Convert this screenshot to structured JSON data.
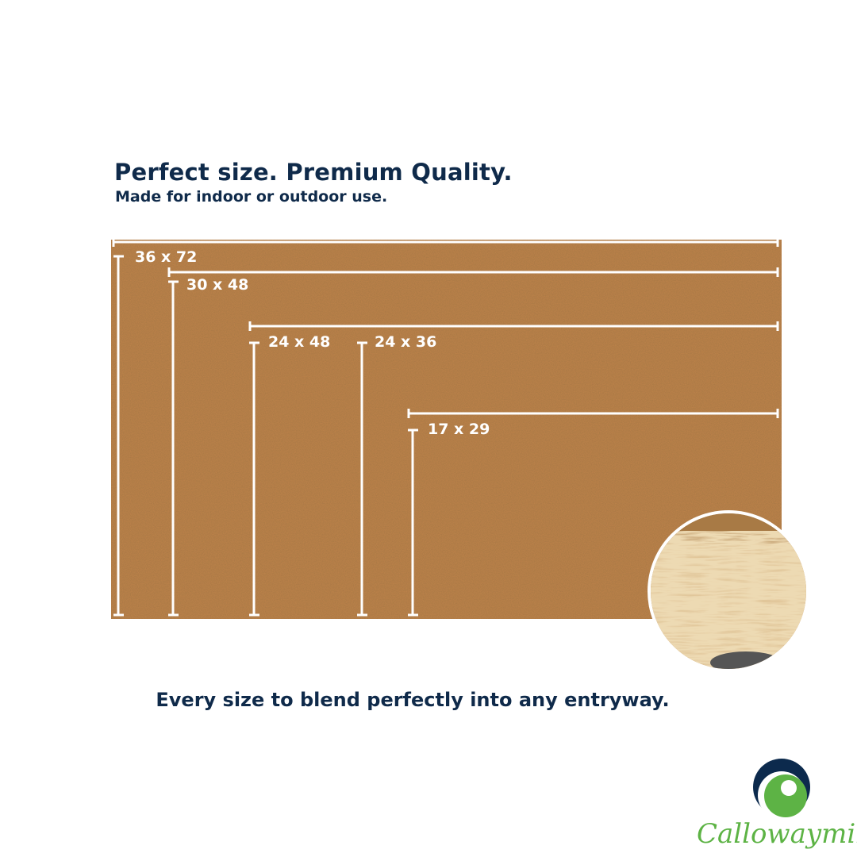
{
  "header": {
    "title": "Perfect size. Premium Quality.",
    "subtitle": "Made for indoor or outdoor use."
  },
  "sizes": [
    "36 x 72",
    "30 x 48",
    "24 x 48",
    "24 x 36",
    "17 x 29"
  ],
  "tagline": "Every size to blend perfectly into any entryway.",
  "brand": {
    "name": "Callowaymills",
    "colors": {
      "navy": "#0c2a4d",
      "green": "#5db345"
    }
  },
  "colors": {
    "mat": "#c0834a",
    "heading": "#0f2a4a"
  }
}
